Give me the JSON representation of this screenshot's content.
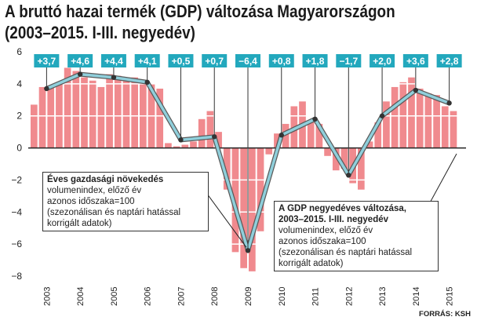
{
  "title_line1": "A bruttó hazai termék (GDP) változása Magyarországon",
  "title_line2": "(2003–2015. I-III. negyedév)",
  "source": "FORRÁS: KSH",
  "annual_box": {
    "title": "Éves gazdasági növekedés",
    "lines": [
      "volumenindex, előző év",
      "azonos időszaka=100",
      "(szezonálisan és naptári hatással",
      "korrigált adatok)"
    ]
  },
  "quarterly_box": {
    "title_lines": [
      "A GDP negyedéves változása,",
      "2003–2015. I-III. negyedév"
    ],
    "lines": [
      "volumenindex, előző év",
      "azonos időszaka=100",
      "(szezonálisan és naptári hatással",
      "korrigált adatok)"
    ]
  },
  "chart_data": {
    "type": "bar",
    "ylim": [
      -8,
      6
    ],
    "yticks": [
      -8,
      -6,
      -4,
      -2,
      0,
      2,
      4,
      6
    ],
    "ytick_labels": [
      "−8",
      "−6",
      "−4",
      "−2",
      "0",
      "2",
      "4",
      "6"
    ],
    "bar_color": "#f08a8e",
    "line_color": "#8fcfdb",
    "label_bg": "#23a8bd",
    "grid": true,
    "years": [
      "2003",
      "2004",
      "2005",
      "2006",
      "2007",
      "2008",
      "2009",
      "2010",
      "2011",
      "2012",
      "2013",
      "2014",
      "2015"
    ],
    "quarterly_values": [
      2.7,
      3.8,
      3.9,
      4.1,
      5.0,
      4.8,
      4.4,
      4.2,
      3.8,
      4.6,
      4.5,
      4.4,
      4.4,
      4.1,
      4.0,
      3.7,
      0.3,
      0.1,
      0.2,
      0.4,
      1.8,
      2.3,
      1.0,
      -2.6,
      -6.5,
      -7.5,
      -7.7,
      -5.2,
      -0.4,
      0.9,
      1.5,
      2.6,
      2.9,
      1.6,
      1.5,
      -0.5,
      -1.4,
      -1.3,
      -2.2,
      -2.6,
      0.4,
      1.6,
      2.9,
      3.8,
      4.1,
      4.4,
      3.7,
      3.4,
      3.3,
      2.6,
      2.3
    ],
    "annual_series": [
      {
        "year": "2003",
        "value": 3.7,
        "label": "+3,7"
      },
      {
        "year": "2004",
        "value": 4.6,
        "label": "+4,6"
      },
      {
        "year": "2005",
        "value": 4.4,
        "label": "+4,4"
      },
      {
        "year": "2006",
        "value": 4.1,
        "label": "+4,1"
      },
      {
        "year": "2007",
        "value": 0.5,
        "label": "+0,5"
      },
      {
        "year": "2008",
        "value": 0.7,
        "label": "+0,7"
      },
      {
        "year": "2009",
        "value": -6.4,
        "label": "−6,4"
      },
      {
        "year": "2010",
        "value": 0.8,
        "label": "+0,8"
      },
      {
        "year": "2011",
        "value": 1.8,
        "label": "+1,8"
      },
      {
        "year": "2012",
        "value": -1.7,
        "label": "−1,7"
      },
      {
        "year": "2013",
        "value": 2.0,
        "label": "+2,0"
      },
      {
        "year": "2014",
        "value": 3.6,
        "label": "+3,6"
      },
      {
        "year": "2015",
        "value": 2.8,
        "label": "+2,8"
      }
    ]
  }
}
